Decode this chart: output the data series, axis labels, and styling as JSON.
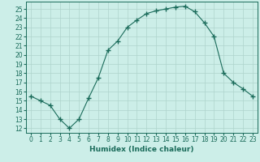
{
  "x": [
    0,
    1,
    2,
    3,
    4,
    5,
    6,
    7,
    8,
    9,
    10,
    11,
    12,
    13,
    14,
    15,
    16,
    17,
    18,
    19,
    20,
    21,
    22,
    23
  ],
  "y": [
    15.5,
    15.0,
    14.5,
    13.0,
    12.0,
    13.0,
    15.3,
    17.5,
    20.5,
    21.5,
    23.0,
    23.8,
    24.5,
    24.8,
    25.0,
    25.2,
    25.3,
    24.7,
    23.5,
    22.0,
    18.0,
    17.0,
    16.3,
    15.5
  ],
  "line_color": "#1a6b5a",
  "marker": "+",
  "marker_size": 4,
  "bg_color": "#cceee8",
  "grid_color": "#aed4cc",
  "xlabel": "Humidex (Indice chaleur)",
  "xlim": [
    -0.5,
    23.5
  ],
  "ylim": [
    11.5,
    25.8
  ],
  "yticks": [
    12,
    13,
    14,
    15,
    16,
    17,
    18,
    19,
    20,
    21,
    22,
    23,
    24,
    25
  ],
  "xticks": [
    0,
    1,
    2,
    3,
    4,
    5,
    6,
    7,
    8,
    9,
    10,
    11,
    12,
    13,
    14,
    15,
    16,
    17,
    18,
    19,
    20,
    21,
    22,
    23
  ],
  "tick_color": "#1a6b5a",
  "label_color": "#1a6b5a",
  "label_fontsize": 6.5,
  "tick_fontsize": 5.5
}
